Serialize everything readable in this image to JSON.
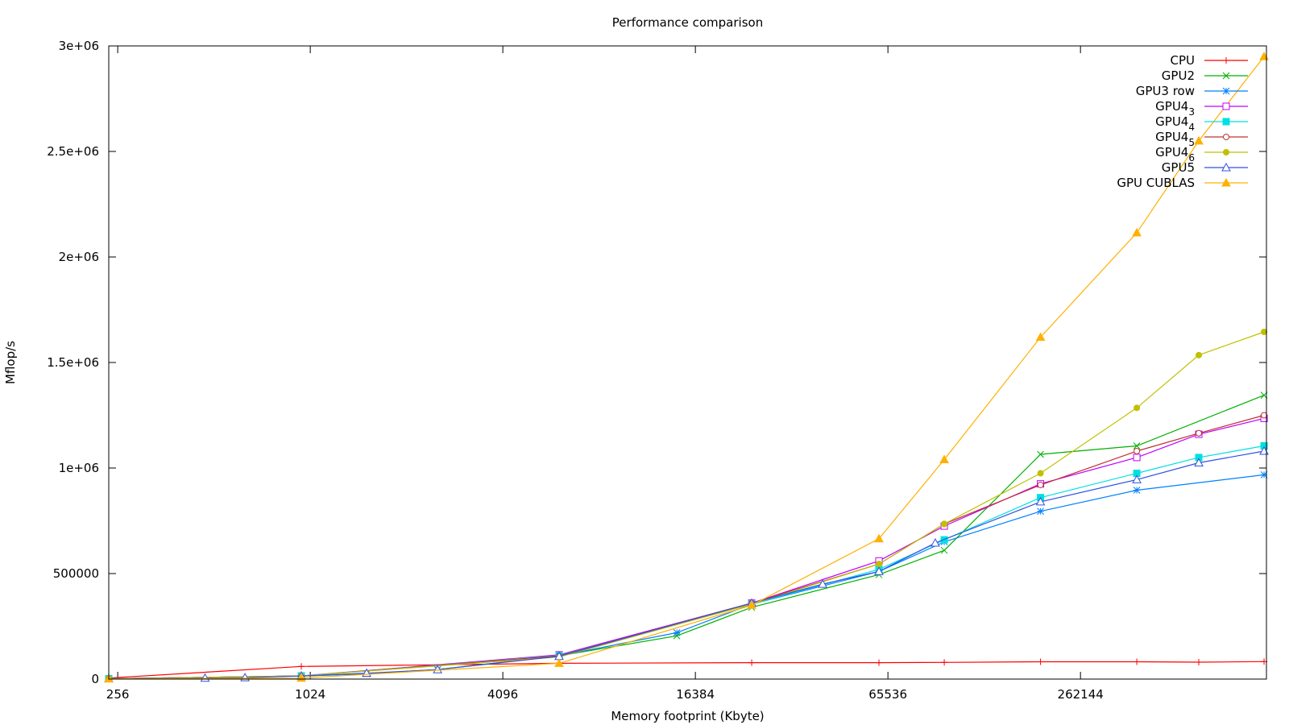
{
  "chart_data": {
    "type": "line",
    "title": "Performance comparison",
    "xlabel": "Memory footprint (Kbyte)",
    "ylabel": "Mflop/s",
    "x_scale": "log2",
    "xlim": [
      240,
      1000000
    ],
    "ylim": [
      0,
      3000000
    ],
    "x_ticks": [
      256,
      1024,
      4096,
      16384,
      65536,
      262144
    ],
    "x_tick_labels": [
      "256",
      "1024",
      "4096",
      "16384",
      "65536",
      "262144"
    ],
    "y_ticks": [
      0,
      500000,
      1000000,
      1500000,
      2000000,
      2500000,
      3000000
    ],
    "y_tick_labels": [
      "0",
      "500000",
      "1e+06",
      "1.5e+06",
      "2e+06",
      "2.5e+06",
      "3e+06"
    ],
    "legend_position": "top-right",
    "grid": false,
    "series": [
      {
        "name": "CPU",
        "sub": "",
        "color": "#ff0000",
        "marker": "plus",
        "x": [
          240,
          960,
          6144,
          24576,
          61440,
          98304,
          196608,
          393216,
          614400,
          983040
        ],
        "y": [
          5000,
          60000,
          75000,
          78000,
          78000,
          79000,
          82000,
          82000,
          80000,
          83000
        ]
      },
      {
        "name": "GPU2",
        "sub": "",
        "color": "#00b000",
        "marker": "x",
        "x": [
          240,
          960,
          1536,
          2560,
          6144,
          14336,
          24576,
          61440,
          98304,
          196608,
          393216,
          983040
        ],
        "y": [
          2000,
          15000,
          25000,
          45000,
          110000,
          205000,
          340000,
          495000,
          610000,
          1065000,
          1105000,
          1345000
        ]
      },
      {
        "name": "GPU3 row",
        "sub": "",
        "color": "#0080ff",
        "marker": "asterisk",
        "x": [
          240,
          960,
          1536,
          2560,
          6144,
          14336,
          24576,
          61440,
          98304,
          196608,
          393216,
          983040
        ],
        "y": [
          2000,
          15000,
          25000,
          45000,
          110000,
          220000,
          355000,
          510000,
          650000,
          795000,
          895000,
          968000
        ]
      },
      {
        "name": "GPU4",
        "sub": "3",
        "color": "#c000ff",
        "marker": "square",
        "x": [
          240,
          960,
          6144,
          24576,
          61440,
          98304,
          196608,
          393216,
          614400,
          983040
        ],
        "y": [
          2000,
          15000,
          115000,
          360000,
          560000,
          725000,
          925000,
          1050000,
          1160000,
          1235000
        ]
      },
      {
        "name": "GPU4",
        "sub": "4",
        "color": "#00e0e0",
        "marker": "filled-square",
        "x": [
          240,
          960,
          6144,
          24576,
          61440,
          98304,
          196608,
          393216,
          614400,
          983040
        ],
        "y": [
          2000,
          15000,
          112000,
          355000,
          520000,
          660000,
          860000,
          975000,
          1050000,
          1105000
        ]
      },
      {
        "name": "GPU4",
        "sub": "5",
        "color": "#c03030",
        "marker": "circle",
        "x": [
          240,
          960,
          6144,
          24576,
          61440,
          98304,
          196608,
          393216,
          614400,
          983040
        ],
        "y": [
          2000,
          15000,
          110000,
          360000,
          545000,
          735000,
          920000,
          1080000,
          1165000,
          1250000
        ]
      },
      {
        "name": "GPU4",
        "sub": "6",
        "color": "#c0c000",
        "marker": "filled-circle",
        "x": [
          240,
          960,
          6144,
          24576,
          61440,
          98304,
          196608,
          393216,
          614400,
          983040
        ],
        "y": [
          2000,
          15000,
          105000,
          355000,
          545000,
          735000,
          975000,
          1285000,
          1535000,
          1645000
        ]
      },
      {
        "name": "GPU5",
        "sub": "",
        "color": "#3050e0",
        "marker": "triangle",
        "x": [
          240,
          480,
          640,
          960,
          1536,
          2560,
          6144,
          24576,
          40960,
          61440,
          92160,
          196608,
          393216,
          614400,
          983040
        ],
        "y": [
          2000,
          5000,
          7000,
          15000,
          28000,
          45000,
          108000,
          360000,
          450000,
          510000,
          645000,
          840000,
          945000,
          1025000,
          1080000
        ]
      },
      {
        "name": "GPU CUBLAS",
        "sub": "",
        "color": "#ffb000",
        "marker": "filled-triangle",
        "x": [
          240,
          960,
          6144,
          24576,
          61440,
          98304,
          196608,
          393216,
          614400,
          983040
        ],
        "y": [
          1000,
          5000,
          75000,
          350000,
          665000,
          1040000,
          1620000,
          2115000,
          2550000,
          2950000
        ]
      }
    ]
  }
}
